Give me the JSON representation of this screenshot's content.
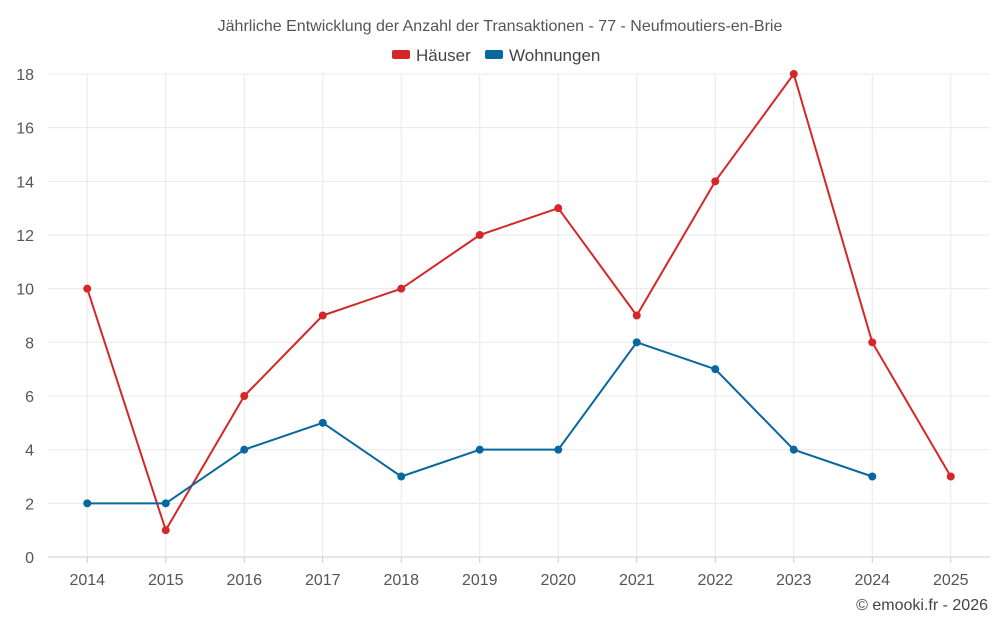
{
  "chart_data": {
    "type": "line",
    "title": "Jährliche Entwicklung der Anzahl der Transaktionen - 77 - Neufmoutiers-en-Brie",
    "x": [
      "2014",
      "2015",
      "2016",
      "2017",
      "2018",
      "2019",
      "2020",
      "2021",
      "2022",
      "2023",
      "2024",
      "2025"
    ],
    "ylim": [
      0,
      18
    ],
    "yticks": [
      0,
      2,
      4,
      6,
      8,
      10,
      12,
      14,
      16,
      18
    ],
    "grid": true,
    "legend_position": "top-center",
    "series": [
      {
        "name": "Häuser",
        "color": "#d62728",
        "values": [
          10,
          1,
          6,
          9,
          10,
          12,
          13,
          9,
          14,
          18,
          8,
          3
        ]
      },
      {
        "name": "Wohnungen",
        "color": "#07679f",
        "values": [
          2,
          2,
          4,
          5,
          3,
          4,
          4,
          8,
          7,
          4,
          3,
          null
        ]
      }
    ]
  },
  "credit": "© emooki.fr - 2026"
}
